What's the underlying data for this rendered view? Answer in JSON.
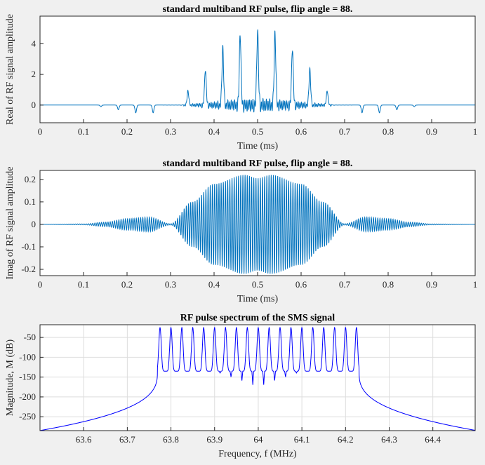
{
  "chart_data": [
    {
      "type": "line",
      "title": "standard multiband RF pulse, flip angle = 88.",
      "xlabel": "Time (ms)",
      "ylabel": "Real of RF signal amplitude",
      "xlim": [
        0,
        1
      ],
      "ylim": [
        -1.15,
        5.8
      ],
      "xticks": [
        0,
        0.1,
        0.2,
        0.3,
        0.4,
        0.5,
        0.6,
        0.7,
        0.8,
        0.9,
        1
      ],
      "xticklabels": [
        "0",
        "0.1",
        "0.2",
        "0.3",
        "0.4",
        "0.5",
        "0.6",
        "0.7",
        "0.8",
        "0.9",
        "1"
      ],
      "yticks": [
        0,
        2,
        4
      ],
      "yticklabels": [
        "0",
        "2",
        "4"
      ],
      "grid": false,
      "color": "#0072bd",
      "peaks": {
        "t": [
          0.14,
          0.18,
          0.22,
          0.26,
          0.34,
          0.38,
          0.42,
          0.46,
          0.5,
          0.54,
          0.58,
          0.62,
          0.66,
          0.74,
          0.78,
          0.82,
          0.86
        ],
        "v": [
          -0.1,
          -0.3,
          -0.5,
          -0.5,
          1.0,
          2.5,
          4.0,
          5.0,
          5.2,
          5.0,
          4.0,
          2.5,
          1.0,
          -0.5,
          -0.5,
          -0.3,
          -0.1
        ]
      }
    },
    {
      "type": "line",
      "title": "standard multiband RF pulse, flip angle = 88.",
      "xlabel": "Time (ms)",
      "ylabel": "Imag of RF signal amplitude",
      "xlim": [
        0,
        1
      ],
      "ylim": [
        -0.228,
        0.24
      ],
      "xticks": [
        0,
        0.1,
        0.2,
        0.3,
        0.4,
        0.5,
        0.6,
        0.7,
        0.8,
        0.9,
        1
      ],
      "xticklabels": [
        "0",
        "0.1",
        "0.2",
        "0.3",
        "0.4",
        "0.5",
        "0.6",
        "0.7",
        "0.8",
        "0.9",
        "1"
      ],
      "yticks": [
        -0.2,
        -0.1,
        0,
        0.1,
        0.2
      ],
      "yticklabels": [
        "-0.2",
        "-0.1",
        "0",
        "0.1",
        "0.2"
      ],
      "grid": false,
      "color": "#0072bd",
      "envelope": {
        "t": [
          0,
          0.1,
          0.15,
          0.2,
          0.25,
          0.3,
          0.35,
          0.4,
          0.47,
          0.5,
          0.53,
          0.6,
          0.65,
          0.7,
          0.75,
          0.8,
          0.85,
          0.9,
          1
        ],
        "amp": [
          0,
          0.002,
          0.01,
          0.025,
          0.032,
          0.003,
          0.1,
          0.18,
          0.22,
          0.205,
          0.22,
          0.18,
          0.1,
          0.003,
          0.032,
          0.025,
          0.01,
          0.002,
          0
        ]
      }
    },
    {
      "type": "line",
      "title": "RF pulse spectrum of the SMS signal",
      "xlabel": "Frequency, f (MHz)",
      "ylabel": "Magnitude, M (dB)",
      "xlim": [
        63.5,
        64.497
      ],
      "ylim": [
        -285,
        -18
      ],
      "xticks": [
        63.6,
        63.7,
        63.8,
        63.9,
        64,
        64.1,
        64.2,
        64.3,
        64.4
      ],
      "xticklabels": [
        "63.6",
        "63.7",
        "63.8",
        "63.9",
        "64",
        "64.1",
        "64.2",
        "64.3",
        "64.4"
      ],
      "yticks": [
        -250,
        -200,
        -150,
        -100,
        -50
      ],
      "yticklabels": [
        "-250",
        "-200",
        "-150",
        "-100",
        "-50"
      ],
      "grid": true,
      "color": "#0000ff",
      "band_peaks_MHz": [
        63.775,
        63.8,
        63.825,
        63.85,
        63.875,
        63.9,
        63.925,
        63.95,
        63.975,
        64.0,
        64.025,
        64.05,
        64.075,
        64.1,
        64.125,
        64.15,
        64.175,
        64.2,
        64.225
      ],
      "peak_dB": -25,
      "trough_dB": -135,
      "edge_dB": -285
    }
  ]
}
